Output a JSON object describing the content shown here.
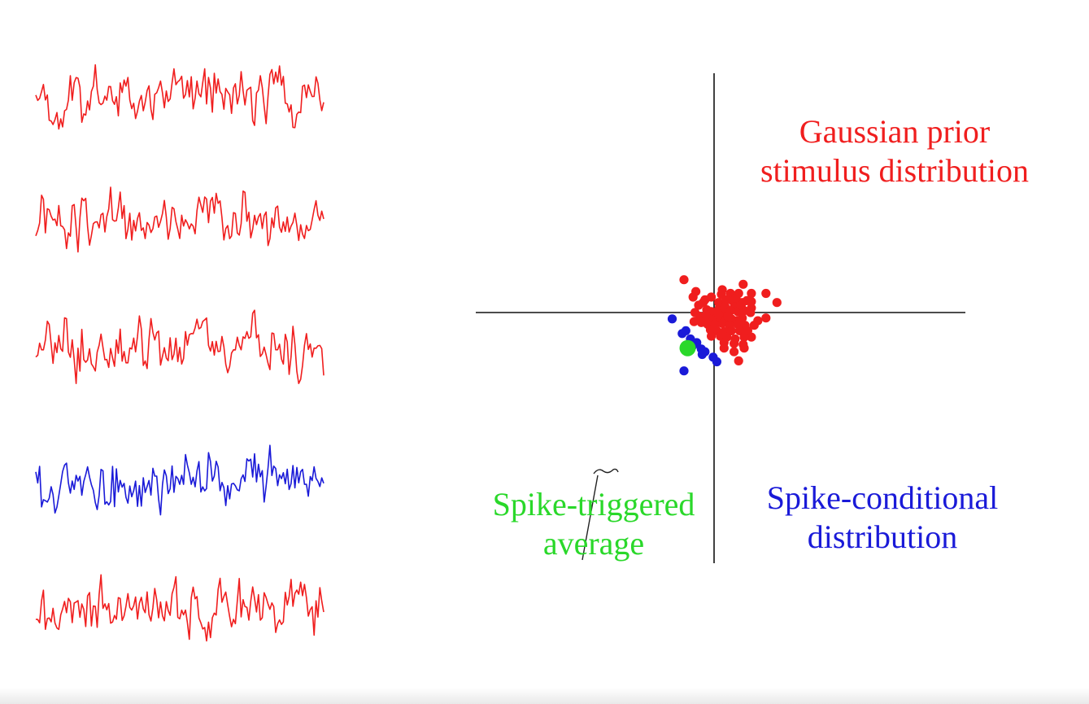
{
  "colors": {
    "prior": "#f01e1e",
    "conditional": "#1a1ad8",
    "sta": "#2ad82a",
    "axes": "#111111"
  },
  "labels": {
    "gaussian_line1": "Gaussian prior",
    "gaussian_line2": "stimulus distribution",
    "sta_line1": "Spike-triggered",
    "sta_line2": "average",
    "scd_line1": "Spike-conditional",
    "scd_line2": "distribution"
  },
  "traces": [
    {
      "color": "prior",
      "seed": 11
    },
    {
      "color": "prior",
      "seed": 23
    },
    {
      "color": "prior",
      "seed": 37
    },
    {
      "color": "conditional",
      "seed": 41
    },
    {
      "color": "prior",
      "seed": 53
    }
  ],
  "scatter": {
    "prior_points": [
      [
        -3.3,
        3.6
      ],
      [
        -2.0,
        2.3
      ],
      [
        -2.3,
        1.7
      ],
      [
        -1.0,
        1.4
      ],
      [
        -1.2,
        1.1
      ],
      [
        -0.3,
        1.7
      ],
      [
        0.8,
        2.0
      ],
      [
        1.8,
        2.1
      ],
      [
        2.7,
        2.1
      ],
      [
        3.2,
        3.1
      ],
      [
        4.1,
        2.1
      ],
      [
        5.7,
        2.1
      ],
      [
        6.9,
        1.1
      ],
      [
        0.5,
        1.1
      ],
      [
        1.3,
        1.4
      ],
      [
        2.0,
        1.3
      ],
      [
        2.6,
        1.2
      ],
      [
        3.1,
        1.1
      ],
      [
        4.1,
        1.2
      ],
      [
        0.6,
        0.6
      ],
      [
        1.2,
        0.7
      ],
      [
        2.2,
        0.6
      ],
      [
        3.0,
        0.6
      ],
      [
        4.1,
        0.5
      ],
      [
        -0.8,
        0.3
      ],
      [
        -0.3,
        0.1
      ],
      [
        0.4,
        0.2
      ],
      [
        1.1,
        0.1
      ],
      [
        1.8,
        0.2
      ],
      [
        2.6,
        0.1
      ],
      [
        3.3,
        0.2
      ],
      [
        4.0,
        0.0
      ],
      [
        -1.6,
        -0.4
      ],
      [
        -1.1,
        -0.6
      ],
      [
        -0.3,
        -0.7
      ],
      [
        0.2,
        -0.7
      ],
      [
        0.8,
        -0.6
      ],
      [
        1.3,
        -0.8
      ],
      [
        1.9,
        -0.7
      ],
      [
        2.5,
        -0.9
      ],
      [
        3.1,
        -0.6
      ],
      [
        4.8,
        -0.9
      ],
      [
        5.7,
        -0.6
      ],
      [
        -2.2,
        -1.0
      ],
      [
        -1.4,
        -1.1
      ],
      [
        -0.7,
        -1.3
      ],
      [
        0.1,
        -1.3
      ],
      [
        0.9,
        -1.2
      ],
      [
        1.7,
        -1.4
      ],
      [
        2.6,
        -1.3
      ],
      [
        3.4,
        -1.4
      ],
      [
        4.4,
        -1.4
      ],
      [
        -0.4,
        -1.9
      ],
      [
        0.3,
        -2.0
      ],
      [
        1.1,
        -2.1
      ],
      [
        1.9,
        -2.0
      ],
      [
        2.8,
        -2.0
      ],
      [
        3.7,
        -2.0
      ],
      [
        4.1,
        -2.7
      ],
      [
        -0.3,
        -2.6
      ],
      [
        0.7,
        -2.6
      ],
      [
        1.4,
        -2.7
      ],
      [
        2.3,
        -2.9
      ],
      [
        3.3,
        -2.7
      ],
      [
        1.1,
        -3.3
      ],
      [
        2.2,
        -3.4
      ],
      [
        3.2,
        -3.5
      ],
      [
        1.1,
        -3.9
      ],
      [
        2.2,
        -4.3
      ],
      [
        2.7,
        -5.3
      ],
      [
        3.3,
        -3.9
      ],
      [
        -1.7,
        0.8
      ],
      [
        2.4,
        1.6
      ],
      [
        -0.9,
        -0.3
      ],
      [
        0.5,
        -0.2
      ],
      [
        1.5,
        -0.4
      ],
      [
        2.9,
        0.8
      ],
      [
        3.6,
        1.3
      ],
      [
        0.9,
        2.5
      ],
      [
        -2.1,
        0.0
      ]
    ],
    "conditional_points": [
      [
        -4.6,
        -0.7
      ],
      [
        -3.1,
        -2.0
      ],
      [
        -3.5,
        -2.3
      ],
      [
        -2.6,
        -2.9
      ],
      [
        -1.9,
        -3.3
      ],
      [
        -2.3,
        -3.6
      ],
      [
        -1.4,
        -4.0
      ],
      [
        -1.3,
        -4.6
      ],
      [
        -0.1,
        -4.9
      ],
      [
        0.3,
        -5.4
      ],
      [
        -3.3,
        -6.4
      ],
      [
        -1.0,
        -4.3
      ]
    ],
    "sta_point": [
      -2.9,
      -3.9
    ]
  }
}
